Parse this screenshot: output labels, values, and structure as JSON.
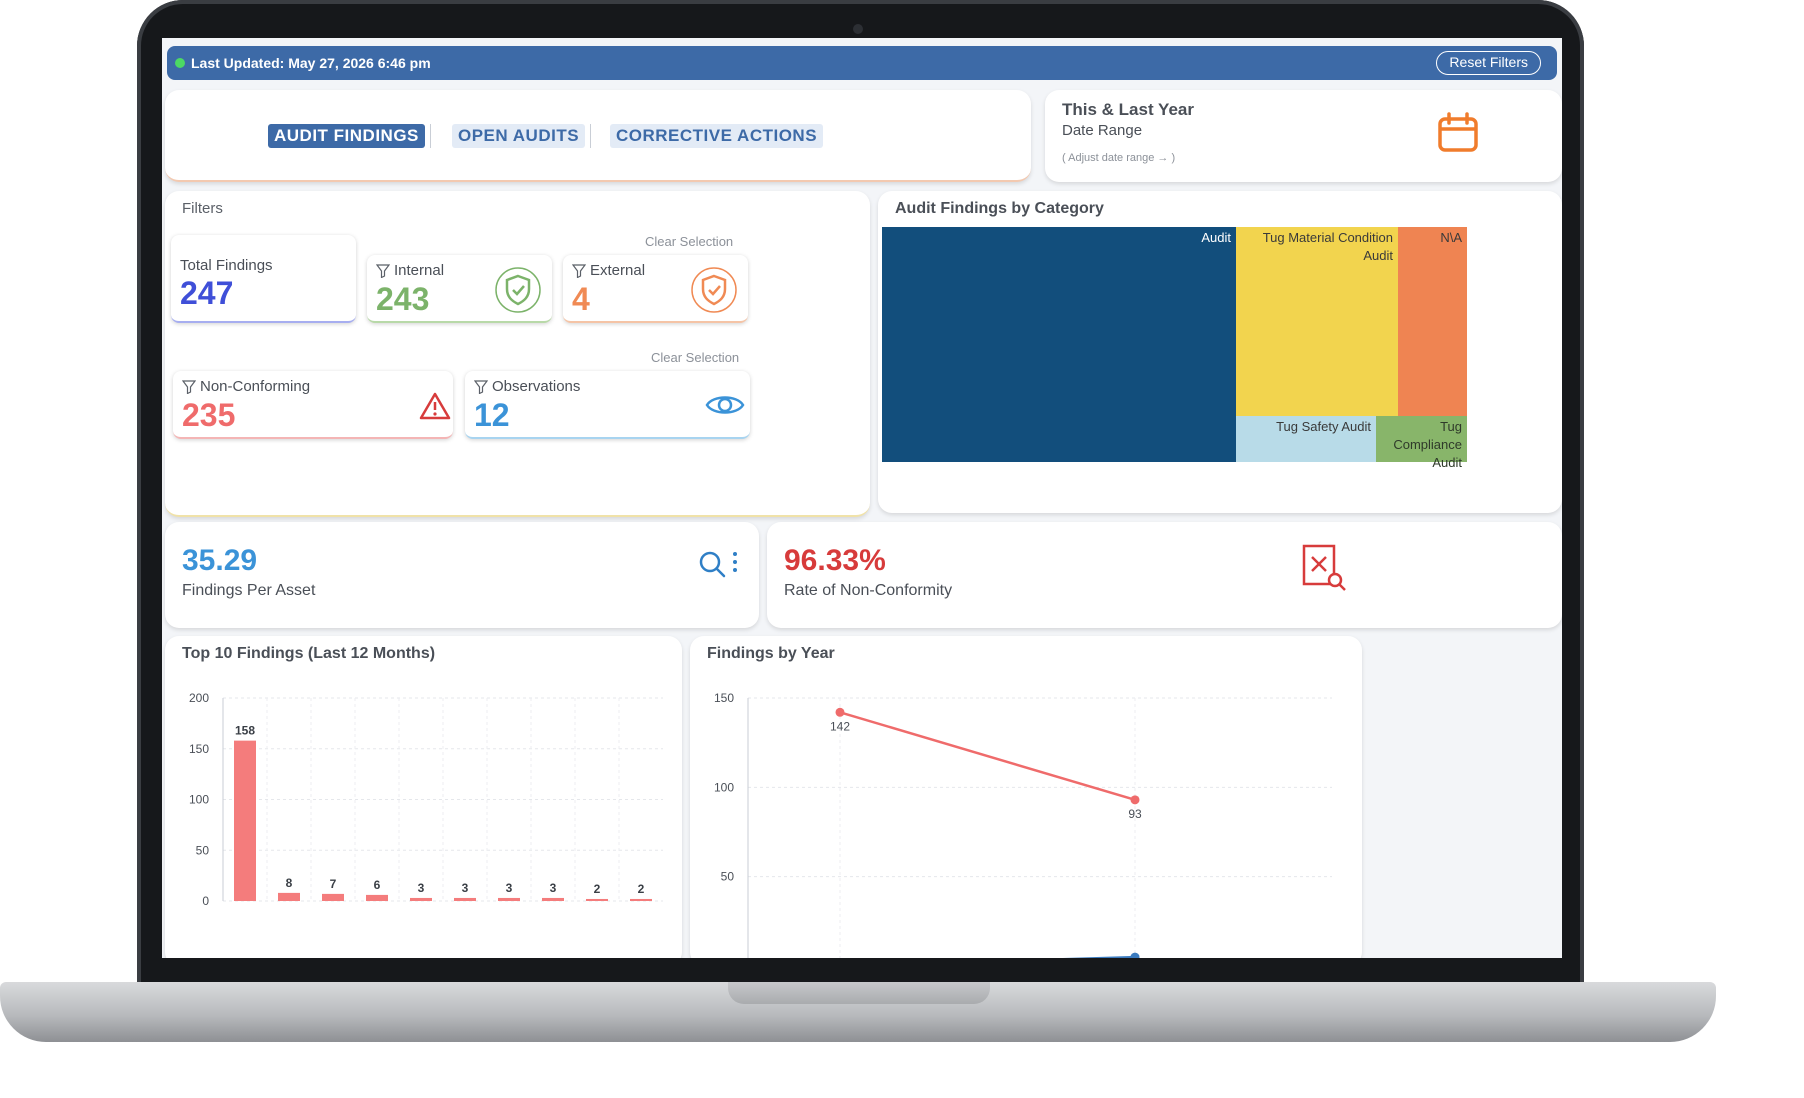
{
  "header": {
    "status": "Last Updated: May 27, 2026 6:46 pm",
    "reset_label": "Reset Filters"
  },
  "tabs": [
    {
      "label": "AUDIT FINDINGS",
      "active": true
    },
    {
      "label": "OPEN AUDITS",
      "active": false
    },
    {
      "label": "CORRECTIVE ACTIONS",
      "active": false
    }
  ],
  "date_range": {
    "title": "This & Last Year",
    "subtitle": "Date Range",
    "hint": "( Adjust date range → )"
  },
  "filters": {
    "label": "Filters",
    "clear_selection": "Clear Selection",
    "total": {
      "label": "Total Findings",
      "value": "247",
      "color": "#3f4fd8"
    },
    "internal": {
      "label": "Internal",
      "value": "243",
      "color": "#7cb36a"
    },
    "external": {
      "label": "External",
      "value": "4",
      "color": "#f08a54"
    },
    "non_conforming": {
      "label": "Non-Conforming",
      "value": "235",
      "color": "#ef6b6b"
    },
    "observations": {
      "label": "Observations",
      "value": "12",
      "color": "#3b93d8"
    }
  },
  "treemap": {
    "title": "Audit Findings by Category",
    "cells": [
      {
        "label": "Audit",
        "color": "#124e7c"
      },
      {
        "label": "Tug Material Condition Audit",
        "color": "#f2d44e"
      },
      {
        "label": "N\\A",
        "color": "#ef8452"
      },
      {
        "label": "Tug Safety Audit",
        "color": "#b8dbe8"
      },
      {
        "label": "Tug Compliance Audit",
        "color": "#88b56a"
      }
    ]
  },
  "metrics": {
    "findings_per_asset": {
      "value": "35.29",
      "label": "Findings Per Asset",
      "color": "#3b93d8"
    },
    "non_conformity": {
      "value": "96.33%",
      "label": "Rate of Non-Conformity",
      "color": "#d73b3b"
    }
  },
  "top10": {
    "title": "Top 10 Findings (Last 12 Months)"
  },
  "by_year": {
    "title": "Findings by Year"
  },
  "chart_data": [
    {
      "type": "bar",
      "title": "Top 10 Findings (Last 12 Months)",
      "values": [
        158,
        8,
        7,
        6,
        3,
        3,
        3,
        3,
        2,
        2
      ],
      "ylim": [
        0,
        200
      ],
      "yticks": [
        0,
        50,
        100,
        150,
        200
      ],
      "color": "#f47c7c"
    },
    {
      "type": "line",
      "title": "Findings by Year",
      "ylim": [
        0,
        150
      ],
      "yticks": [
        50,
        100,
        150
      ],
      "series": [
        {
          "values": [
            142,
            93
          ],
          "color": "#ef6b6b"
        },
        {
          "values": [
            0,
            5
          ],
          "color": "#3b7bbf"
        }
      ]
    }
  ]
}
